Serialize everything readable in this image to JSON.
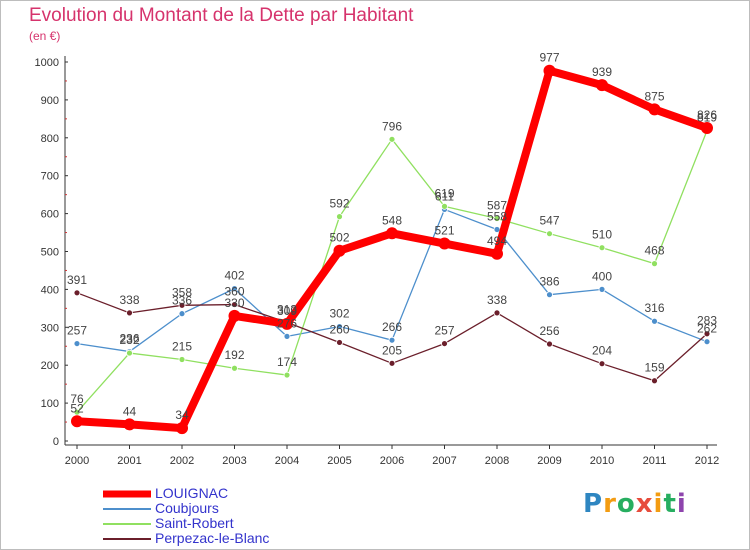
{
  "header": {
    "title": "Evolution du Montant de la Dette par Habitant",
    "subtitle": "(en €)"
  },
  "logo": {
    "letters": [
      "P",
      "r",
      "o",
      "x",
      "i",
      "t",
      "i"
    ],
    "colors": [
      "#2e86c1",
      "#f39c12",
      "#27ae60",
      "#e74c3c",
      "#f39c12",
      "#27ae60",
      "#8e44ad"
    ]
  },
  "chart_data": {
    "type": "line",
    "title": "Evolution du Montant de la Dette par Habitant",
    "subtitle": "(en €)",
    "xlabel": "",
    "ylabel": "",
    "x": [
      "2000",
      "2001",
      "2002",
      "2003",
      "2004",
      "2005",
      "2006",
      "2007",
      "2008",
      "2009",
      "2010",
      "2011",
      "2012"
    ],
    "ylim": [
      0,
      1000
    ],
    "yticks": [
      0,
      100,
      200,
      300,
      400,
      500,
      600,
      700,
      800,
      900,
      1000
    ],
    "grid": false,
    "legend_position": "bottom-left",
    "series": [
      {
        "name": "LOUIGNAC",
        "color": "#ff0000",
        "values": [
          52,
          44,
          34,
          330,
          309,
          502,
          548,
          521,
          494,
          977,
          939,
          875,
          826
        ]
      },
      {
        "name": "Coubjours",
        "color": "#4d8fcc",
        "values": [
          257,
          236,
          336,
          402,
          276,
          302,
          266,
          611,
          558,
          386,
          400,
          316,
          262
        ]
      },
      {
        "name": "Saint-Robert",
        "color": "#90e060",
        "values": [
          76,
          232,
          215,
          192,
          174,
          592,
          796,
          619,
          587,
          547,
          510,
          468,
          819
        ]
      },
      {
        "name": "Perpezac-le-Blanc",
        "color": "#6b1f2b",
        "values": [
          391,
          338,
          358,
          360,
          313,
          260,
          205,
          257,
          338,
          256,
          204,
          159,
          283
        ]
      }
    ]
  }
}
